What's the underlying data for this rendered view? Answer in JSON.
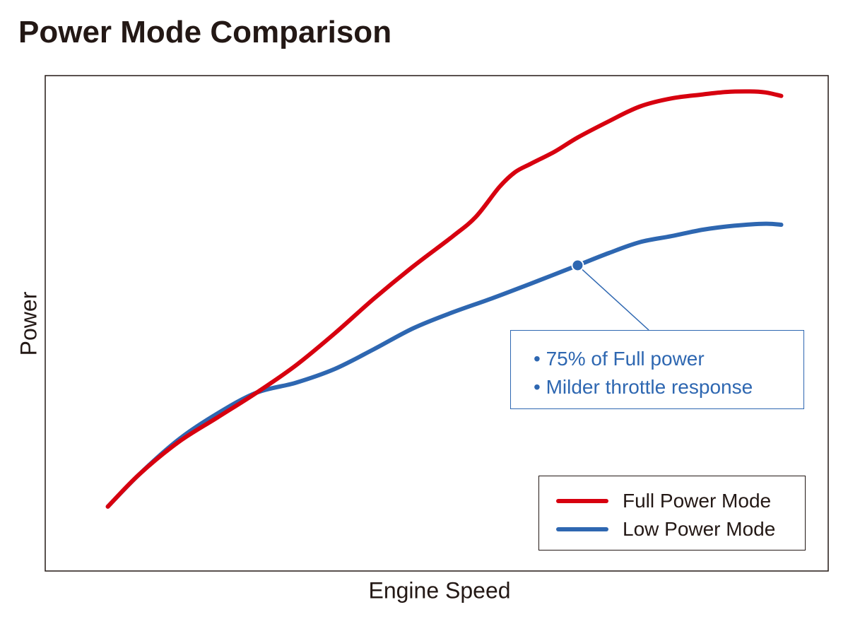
{
  "title": "Power Mode Comparison",
  "colors": {
    "full_power": "#d7000f",
    "low_power": "#2e67b1",
    "text": "#231815",
    "frame": "#231815"
  },
  "annotation": {
    "lines": [
      "• 75% of Full power",
      "• Milder throttle response"
    ],
    "point_series": "Low Power Mode",
    "point_x": 68
  },
  "chart_data": {
    "type": "line",
    "title": "Power Mode Comparison",
    "xlabel": "Engine Speed",
    "ylabel": "Power",
    "xlim": [
      0,
      100
    ],
    "ylim": [
      0,
      100
    ],
    "x_ticks_shown": false,
    "y_ticks_shown": false,
    "grid": false,
    "legend_position": "bottom-right",
    "series": [
      {
        "name": "Full Power Mode",
        "x": [
          8,
          12,
          17,
          22,
          27,
          32,
          37,
          42,
          47,
          52,
          55,
          58,
          60,
          62,
          65,
          68,
          72,
          76,
          80,
          84,
          87,
          90,
          92,
          94
        ],
        "y": [
          13,
          19.5,
          26,
          31,
          36,
          41.5,
          48,
          55,
          61.5,
          67.5,
          71.5,
          77.5,
          80.5,
          82.2,
          84.6,
          87.5,
          90.8,
          93.8,
          95.4,
          96.2,
          96.7,
          96.8,
          96.6,
          95.9
        ]
      },
      {
        "name": "Low Power Mode",
        "x": [
          8,
          12,
          17,
          22,
          27,
          32,
          37,
          42,
          47,
          52,
          57,
          62,
          68,
          72,
          76,
          80,
          84,
          88,
          92,
          94
        ],
        "y": [
          13,
          19.5,
          26.5,
          31.8,
          36,
          38,
          40.8,
          44.8,
          49,
          52.2,
          55,
          58,
          61.7,
          64.2,
          66.4,
          67.6,
          68.9,
          69.7,
          70.1,
          69.9
        ]
      }
    ]
  }
}
